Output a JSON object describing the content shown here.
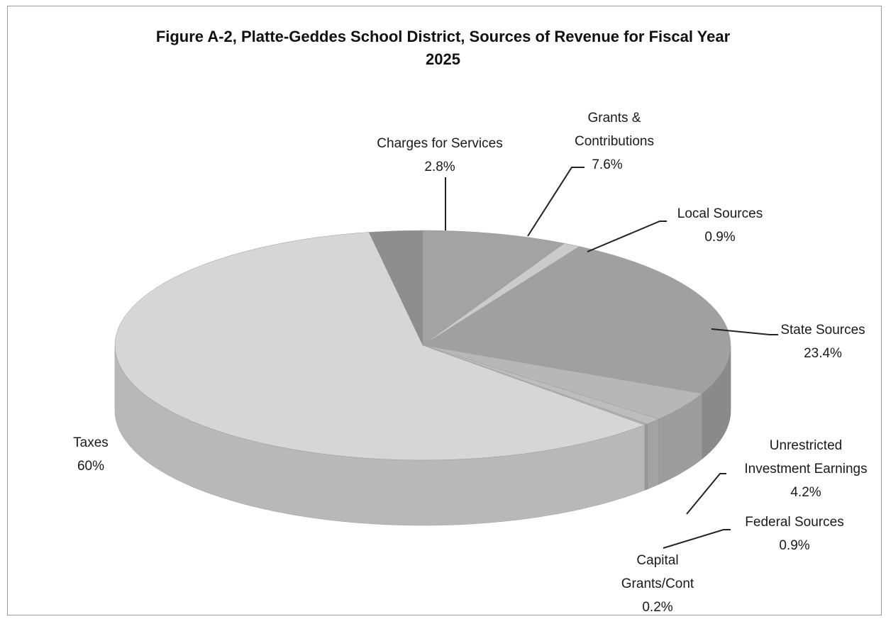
{
  "chart_data": {
    "type": "pie",
    "title": "Figure A-2, Platte-Geddes School District, Sources of Revenue for Fiscal Year 2025",
    "title_lines": [
      "Figure A-2, Platte-Geddes School District, Sources of Revenue for Fiscal Year",
      "2025"
    ],
    "slices": [
      {
        "name": "Grants & Contributions",
        "name_lines": [
          "Grants &",
          "Contributions"
        ],
        "value": 7.6,
        "label": "7.6%",
        "color": "#a3a3a3"
      },
      {
        "name": "Local Sources",
        "name_lines": [
          "Local Sources"
        ],
        "value": 0.9,
        "label": "0.9%",
        "color": "#cbcbcb"
      },
      {
        "name": "State Sources",
        "name_lines": [
          "State Sources"
        ],
        "value": 23.4,
        "label": "23.4%",
        "color": "#a0a0a0"
      },
      {
        "name": "Unrestricted Investment Earnings",
        "name_lines": [
          "Unrestricted",
          "Investment Earnings"
        ],
        "value": 4.2,
        "label": "4.2%",
        "color": "#b7b7b7"
      },
      {
        "name": "Federal Sources",
        "name_lines": [
          "Federal Sources"
        ],
        "value": 0.9,
        "label": "0.9%",
        "color": "#bdbdbd"
      },
      {
        "name": "Capital Grants/Cont",
        "name_lines": [
          "Capital",
          "Grants/Cont"
        ],
        "value": 0.2,
        "label": "0.2%",
        "color": "#b0b0b0"
      },
      {
        "name": "Taxes",
        "name_lines": [
          "Taxes"
        ],
        "value": 60,
        "label": "60%",
        "color": "#d6d6d6"
      },
      {
        "name": "Charges for Services",
        "name_lines": [
          "Charges for Services"
        ],
        "value": 2.8,
        "label": "2.8%",
        "color": "#8e8e8e"
      }
    ],
    "legend": "none",
    "style": "3d-pie"
  }
}
